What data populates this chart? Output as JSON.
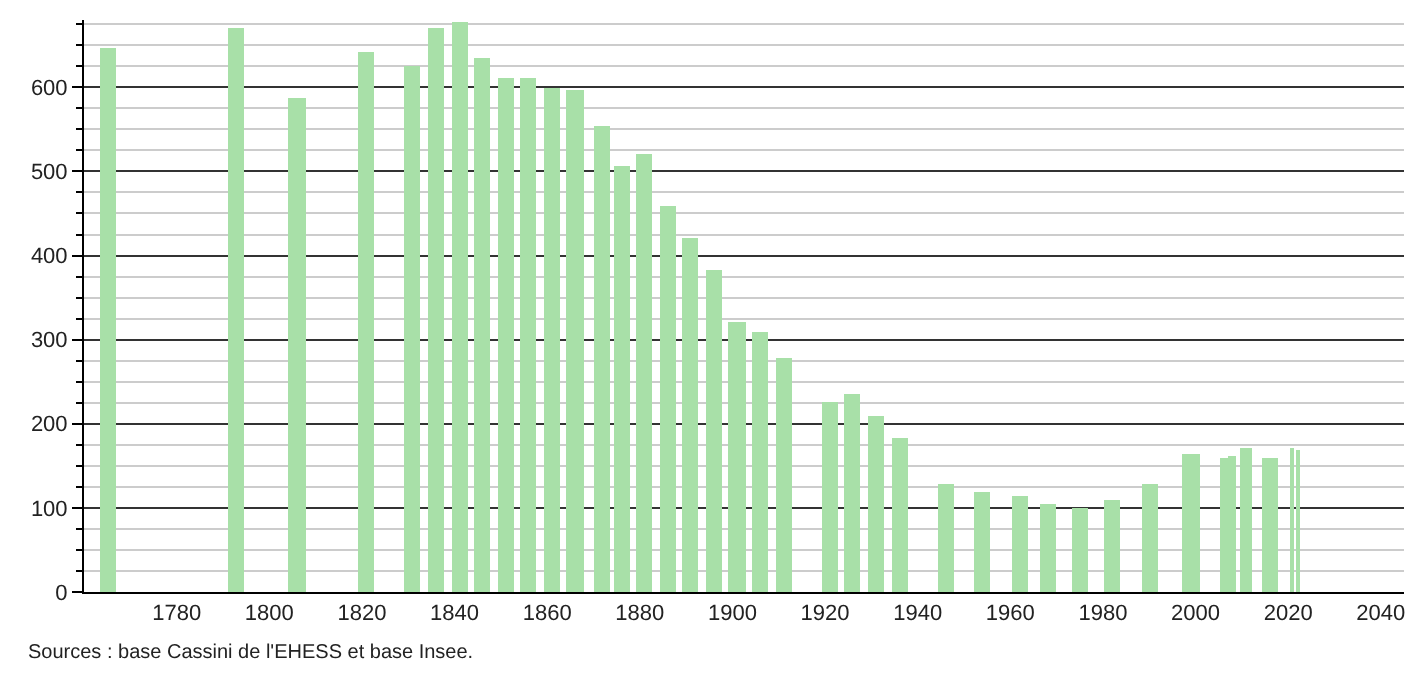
{
  "chart_data": {
    "type": "bar",
    "x": [
      1765,
      1793,
      1806,
      1821,
      1831,
      1836,
      1841,
      1846,
      1851,
      1856,
      1861,
      1866,
      1872,
      1876,
      1881,
      1886,
      1891,
      1896,
      1901,
      1906,
      1911,
      1921,
      1926,
      1931,
      1936,
      1946,
      1954,
      1962,
      1968,
      1975,
      1982,
      1990,
      1999,
      2006,
      2008,
      2011,
      2016,
      2021,
      2022
    ],
    "values": [
      647,
      670,
      588,
      643,
      626,
      670,
      678,
      635,
      612,
      612,
      600,
      596,
      553,
      507,
      521,
      460,
      421,
      383,
      320,
      310,
      278,
      227,
      235,
      210,
      182,
      129,
      120,
      113,
      104,
      100,
      109,
      128,
      165,
      160,
      161,
      172,
      160,
      172,
      170
    ],
    "color": "#a8e0a8",
    "xlim": [
      1760,
      2045
    ],
    "xticks": [
      1780,
      1800,
      1820,
      1840,
      1860,
      1880,
      1900,
      1920,
      1940,
      1960,
      1980,
      2000,
      2020,
      2040
    ],
    "ylim": [
      0,
      680
    ],
    "yticks": [
      0,
      100,
      200,
      300,
      400,
      500,
      600
    ],
    "grid": "y",
    "annotations": [
      "Sources : base Cassini de l'EHESS et base Insee."
    ]
  }
}
